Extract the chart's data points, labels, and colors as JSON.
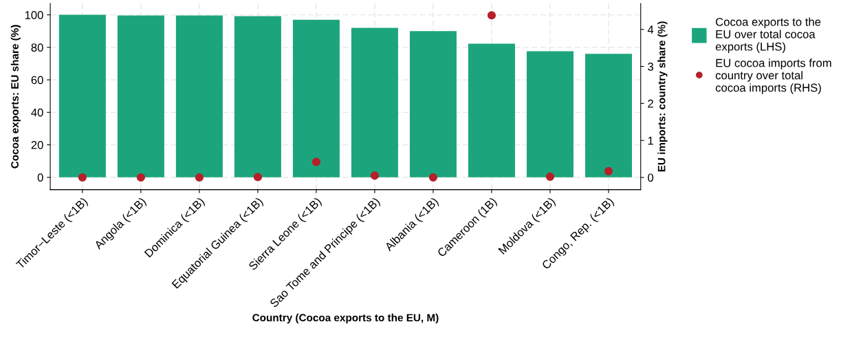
{
  "chart_data": {
    "type": "bar",
    "xlabel": "Country (Cocoa exports to the EU, M)",
    "ylabel": "Cocoa exports: EU share (%)",
    "y2label": "EU imports: country share (%)",
    "categories": [
      "Timor−Leste (<1B)",
      "Angola (<1B)",
      "Dominica (<1B)",
      "Equatorial Guinea (<1B)",
      "Sierra Leone (<1B)",
      "Sao Tome and Principe (<1B)",
      "Albania (<1B)",
      "Cameroon (1B)",
      "Moldova (<1B)",
      "Congo, Rep. (<1B)"
    ],
    "series": [
      {
        "name": "Cocoa exports to the EU over total cocoa exports (LHS)",
        "color": "#1ca57d",
        "values": [
          100,
          99.6,
          99.6,
          99.2,
          97,
          92,
          90,
          82.3,
          77.6,
          76
        ]
      },
      {
        "name": "EU cocoa imports from country over total cocoa imports (RHS)",
        "type": "scatter",
        "axis": "y2",
        "color": "#b5202a",
        "values": [
          0,
          0,
          0,
          0.01,
          0.42,
          0.05,
          0,
          4.38,
          0.02,
          0.17
        ]
      }
    ],
    "ylim": [
      -7.6,
      107
    ],
    "yticks": [
      0,
      20,
      40,
      60,
      80,
      100
    ],
    "y2lim": [
      -0.33,
      4.7
    ],
    "y2ticks": [
      0,
      1,
      2,
      3,
      4
    ],
    "grid": true,
    "legend": "right",
    "marker": "circle"
  }
}
